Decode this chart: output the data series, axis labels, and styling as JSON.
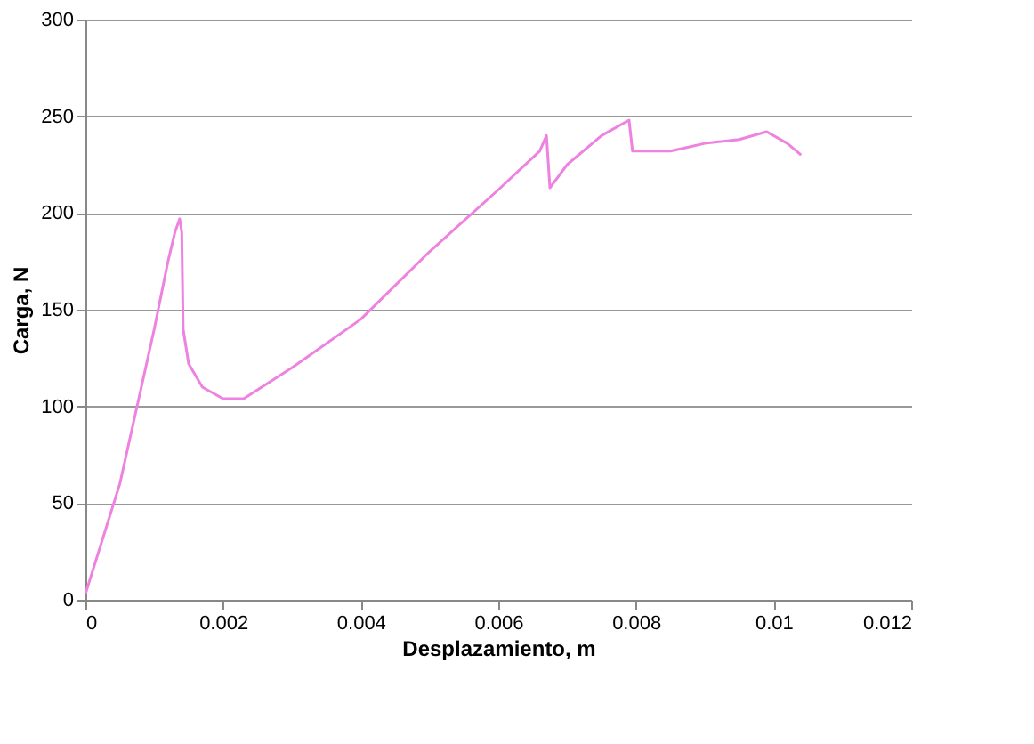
{
  "chart_data": {
    "type": "line",
    "xlabel": "Desplazamiento, m",
    "ylabel": "Carga, N",
    "xlim": [
      0,
      0.012
    ],
    "xticks": [
      0,
      0.002,
      0.004,
      0.006,
      0.008,
      0.01,
      0.012
    ],
    "ylim": [
      0,
      300
    ],
    "yticks": [
      0,
      50,
      100,
      150,
      200,
      250,
      300
    ],
    "grid": "y",
    "line_style": "solid",
    "marker": "none",
    "series": [
      {
        "color": "#ee82e0",
        "x": [
          0,
          0.0005,
          0.001,
          0.0012,
          0.0013,
          0.00137,
          0.0014,
          0.00142,
          0.0015,
          0.0017,
          0.002,
          0.0023,
          0.003,
          0.004,
          0.005,
          0.006,
          0.0066,
          0.0067,
          0.00675,
          0.007,
          0.0075,
          0.0079,
          0.00795,
          0.0085,
          0.009,
          0.0095,
          0.0099,
          0.0102,
          0.0104
        ],
        "values": [
          3,
          60,
          140,
          175,
          190,
          197,
          190,
          140,
          122,
          110,
          104,
          104,
          120,
          145,
          180,
          212,
          232,
          240,
          213,
          225,
          240,
          248,
          232,
          232,
          236,
          238,
          242,
          236,
          230
        ]
      }
    ]
  }
}
